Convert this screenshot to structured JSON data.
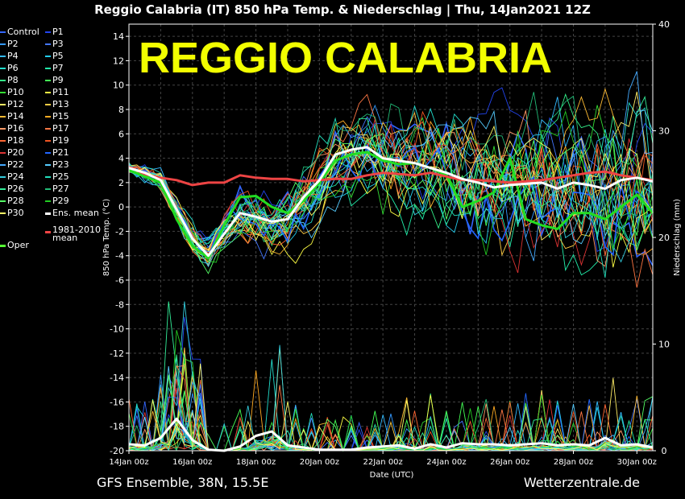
{
  "header": {
    "title": "Reggio Calabria  (IT)  850 hPa Temp. & Niederschlag | Thu, 14Jan2021 12Z"
  },
  "footer": {
    "left": "GFS Ensemble, 38N, 15.5E",
    "right": "Wetterzentrale.de"
  },
  "chart_data": {
    "type": "line",
    "overlay_text": "REGGIO CALABRIA",
    "overlay_color": "#f2ff00",
    "xlabel": "Date (UTC)",
    "ylabel": "850 hPa Temp. (°C)",
    "y2label": "Niederschlag (mm)",
    "xlim": [
      0,
      16.5
    ],
    "ylim": [
      -20,
      15
    ],
    "y2lim": [
      0,
      40
    ],
    "x_ticks": [
      {
        "x": 0,
        "label": "14Jan 00z"
      },
      {
        "x": 2,
        "label": "16Jan 00z"
      },
      {
        "x": 4,
        "label": "18Jan 00z"
      },
      {
        "x": 6,
        "label": "20Jan 00z"
      },
      {
        "x": 8,
        "label": "22Jan 00z"
      },
      {
        "x": 10,
        "label": "24Jan 00z"
      },
      {
        "x": 12,
        "label": "26Jan 00z"
      },
      {
        "x": 14,
        "label": "28Jan 00z"
      },
      {
        "x": 16,
        "label": "30Jan 00z"
      }
    ],
    "y_ticks": [
      14,
      12,
      10,
      8,
      6,
      4,
      2,
      0,
      -2,
      -4,
      -6,
      -8,
      -10,
      -12,
      -14,
      -16,
      -18,
      -20
    ],
    "y2_ticks": [
      0,
      10,
      20,
      30,
      40
    ],
    "grid": true,
    "legend_position": "left",
    "legend": [
      {
        "label": "Control",
        "color": "#3366ff"
      },
      {
        "label": "P1",
        "color": "#2244ee"
      },
      {
        "label": "P2",
        "color": "#3399ff"
      },
      {
        "label": "P3",
        "color": "#4477ff"
      },
      {
        "label": "P4",
        "color": "#33bbff"
      },
      {
        "label": "P5",
        "color": "#22ccee"
      },
      {
        "label": "P6",
        "color": "#22ddcc"
      },
      {
        "label": "P7",
        "color": "#22eeaa"
      },
      {
        "label": "P8",
        "color": "#33ee88"
      },
      {
        "label": "P9",
        "color": "#44ff55"
      },
      {
        "label": "P10",
        "color": "#33dd33"
      },
      {
        "label": "P11",
        "color": "#ffff44"
      },
      {
        "label": "P12",
        "color": "#ffee66"
      },
      {
        "label": "P13",
        "color": "#ffcc44"
      },
      {
        "label": "P14",
        "color": "#ffbb33"
      },
      {
        "label": "P15",
        "color": "#ffaa22"
      },
      {
        "label": "P16",
        "color": "#ff9966"
      },
      {
        "label": "P17",
        "color": "#ff7744"
      },
      {
        "label": "P18",
        "color": "#ff6633"
      },
      {
        "label": "P19",
        "color": "#ee5522"
      },
      {
        "label": "P20",
        "color": "#dd3333"
      },
      {
        "label": "P21",
        "color": "#2266ff"
      },
      {
        "label": "P22",
        "color": "#44aaff"
      },
      {
        "label": "P23",
        "color": "#55ccff"
      },
      {
        "label": "P24",
        "color": "#33ccdd"
      },
      {
        "label": "P25",
        "color": "#22ddbb"
      },
      {
        "label": "P26",
        "color": "#33ee99"
      },
      {
        "label": "P27",
        "color": "#22bb77"
      },
      {
        "label": "P28",
        "color": "#55ff66"
      },
      {
        "label": "P29",
        "color": "#22cc22"
      },
      {
        "label": "P30",
        "color": "#ffff66"
      },
      {
        "label": "Ens. mean",
        "color": "#ffffff"
      },
      {
        "label": "1981-2010 mean",
        "color": "#ee4444"
      },
      {
        "label": "Oper",
        "color": "#55ff33"
      }
    ],
    "series_ens_mean_temp": {
      "x": [
        0,
        0.5,
        1,
        1.5,
        2,
        2.5,
        3,
        3.5,
        4,
        4.5,
        5,
        5.5,
        6,
        6.5,
        7,
        7.5,
        8,
        8.5,
        9,
        9.5,
        10,
        10.5,
        11,
        11.5,
        12,
        12.5,
        13,
        13.5,
        14,
        14.5,
        15,
        15.5,
        16,
        16.5
      ],
      "values": [
        3.2,
        2.8,
        2.2,
        -0.2,
        -2.6,
        -4.0,
        -2.2,
        -0.5,
        -0.8,
        -1.2,
        -1.0,
        0.8,
        2.2,
        4.3,
        4.7,
        4.9,
        4.0,
        3.8,
        3.6,
        3.2,
        2.8,
        2.3,
        2.0,
        1.6,
        1.8,
        1.9,
        2.0,
        1.5,
        2.0,
        1.8,
        1.5,
        2.2,
        2.4,
        2.1
      ]
    },
    "series_climate_mean_temp": {
      "x": [
        0,
        0.5,
        1,
        1.5,
        2,
        2.5,
        3,
        3.5,
        4,
        4.5,
        5,
        5.5,
        6,
        6.5,
        7,
        7.5,
        8,
        8.5,
        9,
        9.5,
        10,
        10.5,
        11,
        11.5,
        12,
        12.5,
        13,
        13.5,
        14,
        14.5,
        15,
        15.5,
        16,
        16.5
      ],
      "values": [
        3.3,
        2.7,
        2.4,
        2.2,
        1.8,
        2.0,
        2.0,
        2.6,
        2.4,
        2.3,
        2.3,
        2.1,
        2.2,
        2.3,
        2.3,
        2.6,
        2.8,
        2.7,
        2.6,
        2.8,
        2.5,
        2.2,
        2.2,
        2.1,
        2.0,
        2.1,
        2.2,
        2.4,
        2.6,
        2.8,
        2.9,
        2.6,
        2.4,
        2.2
      ]
    },
    "series_oper_temp": {
      "x": [
        0,
        0.5,
        1,
        1.5,
        2,
        2.5,
        3,
        3.5,
        4,
        4.5,
        5,
        5.5,
        6,
        6.5,
        7,
        7.5,
        8,
        8.5,
        9,
        9.5,
        10,
        10.5,
        11,
        11.5,
        12,
        12.5,
        13,
        13.5,
        14,
        14.5,
        15,
        15.5,
        16,
        16.5
      ],
      "values": [
        3.0,
        2.5,
        2.0,
        -1.0,
        -3.2,
        -4.2,
        -1.5,
        0.8,
        0.9,
        0.0,
        -0.5,
        0.5,
        2.0,
        3.8,
        4.3,
        4.5,
        3.8,
        3.5,
        3.6,
        3.2,
        2.6,
        0.0,
        0.5,
        1.2,
        4.0,
        -1.0,
        -1.5,
        -1.8,
        -0.5,
        -0.5,
        -1.0,
        0.0,
        1.0,
        -0.5
      ]
    },
    "series_ens_mean_precip": {
      "x": [
        0,
        0.5,
        1,
        1.5,
        2,
        2.5,
        3,
        3.5,
        4,
        4.5,
        5,
        5.5,
        6,
        6.5,
        7,
        7.5,
        8,
        8.5,
        9,
        9.5,
        10,
        10.5,
        11,
        11.5,
        12,
        12.5,
        13,
        13.5,
        14,
        14.5,
        15,
        15.5,
        16,
        16.5
      ],
      "values": [
        0.6,
        0.5,
        1.2,
        3.0,
        1.0,
        0.1,
        0.0,
        0.4,
        1.4,
        1.8,
        0.5,
        0.3,
        0.1,
        0.1,
        0.1,
        0.3,
        0.4,
        0.5,
        0.2,
        0.6,
        0.3,
        0.7,
        0.6,
        0.6,
        0.5,
        0.6,
        0.7,
        0.5,
        0.6,
        0.5,
        1.2,
        0.5,
        0.6,
        0.3
      ]
    }
  }
}
